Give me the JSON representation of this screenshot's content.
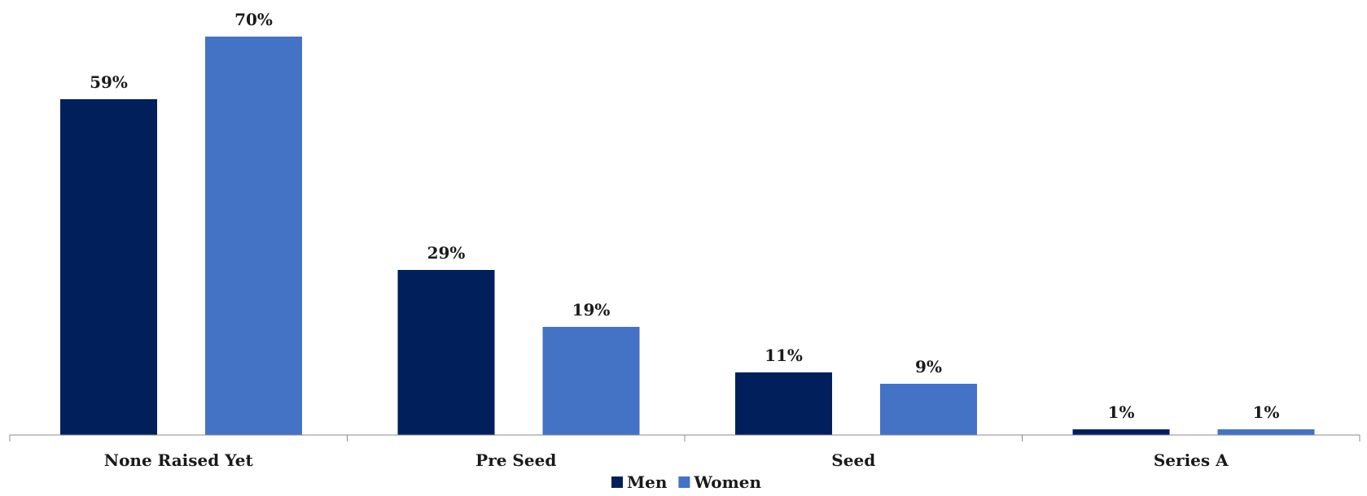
{
  "chart_data": {
    "type": "bar",
    "categories": [
      "None Raised Yet",
      "Pre Seed",
      "Seed",
      "Series A"
    ],
    "series": [
      {
        "name": "Men",
        "values": [
          59,
          29,
          11,
          1
        ],
        "labels": [
          "59%",
          "29%",
          "11%",
          "1%"
        ],
        "color": "#001f5b"
      },
      {
        "name": "Women",
        "values": [
          70,
          19,
          9,
          1
        ],
        "labels": [
          "70%",
          "19%",
          "9%",
          "1%"
        ],
        "color": "#4472c4"
      }
    ],
    "title": "",
    "xlabel": "",
    "ylabel": "",
    "ylim": [
      0,
      70
    ],
    "grid": false,
    "legend": "bottom-center"
  }
}
